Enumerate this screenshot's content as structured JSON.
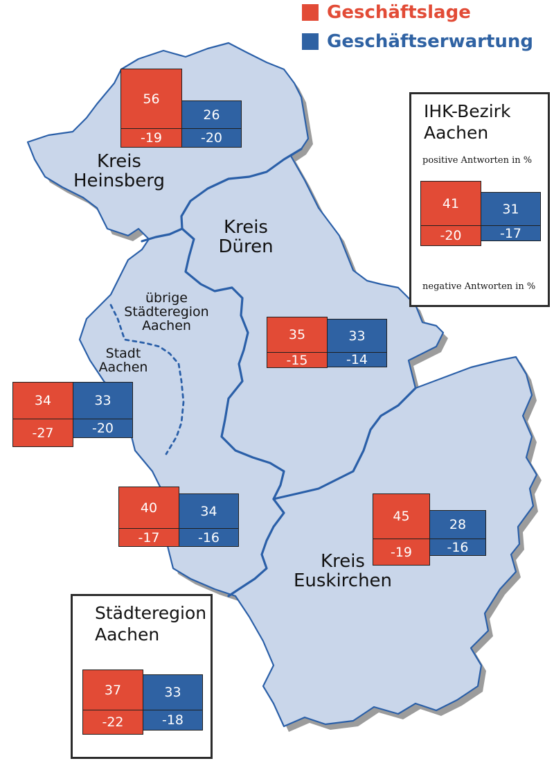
{
  "legend": [
    {
      "label": "Geschäftslage",
      "color": "#e24b36"
    },
    {
      "label": "Geschäftserwartung",
      "color": "#2f62a3"
    }
  ],
  "colors": {
    "region_fill": "#c9d6ea",
    "border": "#2a5fa8",
    "shadow": "#9c9c9c",
    "lage": "#e24b36",
    "erwartung": "#2f62a3"
  },
  "regions": {
    "heinsberg": [
      "Kreis",
      "Heinsberg"
    ],
    "dueren": [
      "Kreis",
      "Düren"
    ],
    "uebrige": [
      "übrige",
      "Städteregion",
      "Aachen"
    ],
    "stadt": [
      "Stadt",
      "Aachen"
    ],
    "euskirchen": [
      "Kreis",
      "Euskirchen"
    ]
  },
  "ihk_panel": {
    "title": [
      "IHK-Bezirk",
      "Aachen"
    ],
    "positive_note": "positive Antworten in %",
    "negative_note": "negative Antworten in %"
  },
  "staedteregion_panel": {
    "title": [
      "Städteregion",
      "Aachen"
    ]
  },
  "stats": {
    "heinsberg": {
      "lage_pos": "56",
      "lage_neg": "-19",
      "erw_pos": "26",
      "erw_neg": "-20"
    },
    "dueren": {
      "lage_pos": "35",
      "lage_neg": "-15",
      "erw_pos": "33",
      "erw_neg": "-14"
    },
    "stadt": {
      "lage_pos": "34",
      "lage_neg": "-27",
      "erw_pos": "33",
      "erw_neg": "-20"
    },
    "uebrige": {
      "lage_pos": "40",
      "lage_neg": "-17",
      "erw_pos": "34",
      "erw_neg": "-16"
    },
    "euskirchen": {
      "lage_pos": "45",
      "lage_neg": "-19",
      "erw_pos": "28",
      "erw_neg": "-16"
    },
    "ihk": {
      "lage_pos": "41",
      "lage_neg": "-20",
      "erw_pos": "31",
      "erw_neg": "-17"
    },
    "staedteregion": {
      "lage_pos": "37",
      "lage_neg": "-22",
      "erw_pos": "33",
      "erw_neg": "-18"
    }
  }
}
